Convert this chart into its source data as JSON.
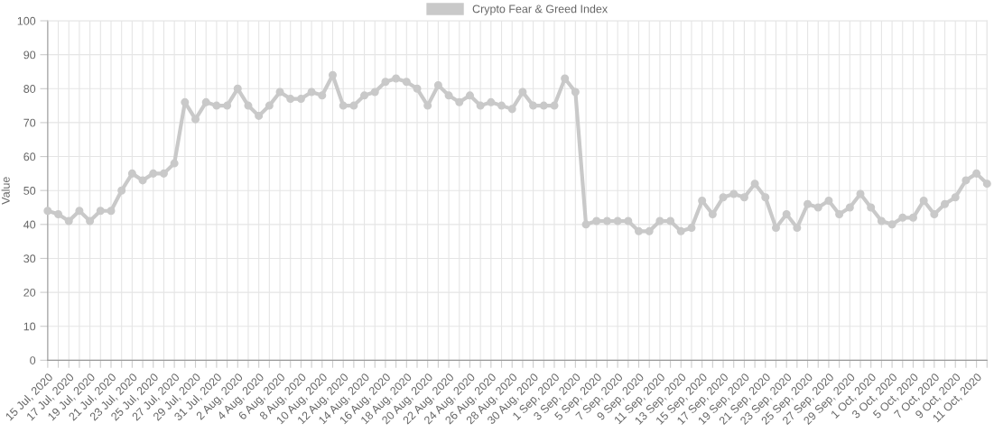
{
  "chart_data": {
    "type": "line",
    "ylabel": "Value",
    "categories": [
      "15 Jul, 2020",
      null,
      "17 Jul, 2020",
      null,
      "19 Jul, 2020",
      null,
      "21 Jul, 2020",
      null,
      "23 Jul, 2020",
      null,
      "25 Jul, 2020",
      null,
      "27 Jul, 2020",
      null,
      "29 Jul, 2020",
      null,
      "31 Jul, 2020",
      null,
      "2 Aug, 2020",
      null,
      "4 Aug, 2020",
      null,
      "6 Aug, 2020",
      null,
      "8 Aug, 2020",
      null,
      "10 Aug, 2020",
      null,
      "12 Aug, 2020",
      null,
      "14 Aug, 2020",
      null,
      "16 Aug, 2020",
      null,
      "18 Aug, 2020",
      null,
      "20 Aug, 2020",
      null,
      "22 Aug, 2020",
      null,
      "24 Aug, 2020",
      null,
      "26 Aug, 2020",
      null,
      "28 Aug, 2020",
      null,
      "30 Aug, 2020",
      null,
      "1 Sep, 2020",
      null,
      "3 Sep, 2020",
      null,
      "5 Sep, 2020",
      null,
      "7 Sep, 2020",
      null,
      "9 Sep, 2020",
      null,
      "11 Sep, 2020",
      null,
      "13 Sep, 2020",
      null,
      "15 Sep, 2020",
      null,
      "17 Sep, 2020",
      null,
      "19 Sep, 2020",
      null,
      "21 Sep, 2020",
      null,
      "23 Sep, 2020",
      null,
      "25 Sep, 2020",
      null,
      "27 Sep, 2020",
      null,
      "29 Sep, 2020",
      null,
      "1 Oct, 2020",
      null,
      "3 Oct, 2020",
      null,
      "5 Oct, 2020",
      null,
      "7 Oct, 2020",
      null,
      "9 Oct, 2020",
      null,
      "11 Oct, 2020",
      null
    ],
    "series": [
      {
        "name": "Crypto Fear & Greed Index",
        "color": "#c9c9c9",
        "values": [
          44,
          43,
          41,
          44,
          41,
          44,
          44,
          50,
          55,
          53,
          55,
          55,
          58,
          76,
          71,
          76,
          75,
          75,
          80,
          75,
          72,
          75,
          79,
          77,
          77,
          79,
          78,
          84,
          75,
          75,
          78,
          79,
          82,
          83,
          82,
          80,
          75,
          81,
          78,
          76,
          78,
          75,
          76,
          75,
          74,
          79,
          75,
          75,
          75,
          83,
          79,
          40,
          41,
          41,
          41,
          41,
          38,
          38,
          41,
          41,
          38,
          39,
          47,
          43,
          48,
          49,
          48,
          52,
          48,
          39,
          43,
          39,
          46,
          45,
          47,
          43,
          45,
          49,
          45,
          41,
          40,
          42,
          42,
          47,
          43,
          46,
          48,
          53,
          55,
          52
        ]
      }
    ],
    "ylim": [
      0,
      100
    ],
    "yticks": [
      0,
      10,
      20,
      30,
      40,
      50,
      60,
      70,
      80,
      90,
      100
    ],
    "grid": true,
    "legend": "top",
    "marker": "circle",
    "line_style": "solid"
  }
}
